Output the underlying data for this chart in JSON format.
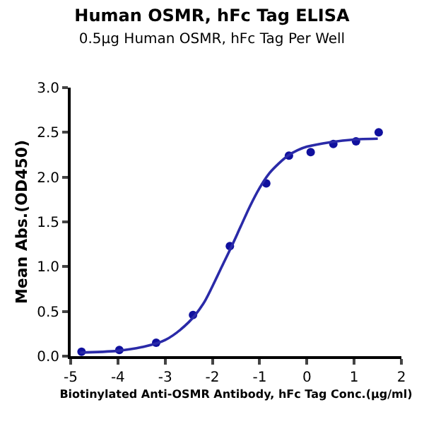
{
  "chart_data": {
    "type": "scatter",
    "title": "Human OSMR, hFc Tag ELISA",
    "subtitle": "0.5μg Human OSMR, hFc Tag Per Well",
    "xlabel": "Biotinylated Anti-OSMR Antibody, hFc Tag Conc.(μg/ml)",
    "ylabel": "Mean Abs.(OD450)",
    "series": [
      {
        "color": "#10109e",
        "marker": "circle",
        "x": [
          -4.77,
          -3.97,
          -3.19,
          -2.41,
          -1.63,
          -0.86,
          -0.38,
          0.08,
          0.56,
          1.04,
          1.52
        ],
        "values": [
          0.05,
          0.07,
          0.15,
          0.46,
          1.23,
          1.93,
          2.24,
          2.28,
          2.37,
          2.4,
          2.5
        ]
      },
      {
        "type": "line",
        "color": "#2a2aa8",
        "marker": "none",
        "x": [
          -4.8,
          -4.0,
          -3.5,
          -3.0,
          -2.5,
          -2.2,
          -2.0,
          -1.8,
          -1.6,
          -1.4,
          -1.2,
          -1.0,
          -0.8,
          -0.6,
          -0.4,
          -0.2,
          0,
          0.5,
          1.0,
          1.5
        ],
        "values": [
          0.04,
          0.06,
          0.1,
          0.18,
          0.38,
          0.58,
          0.78,
          1.0,
          1.22,
          1.45,
          1.68,
          1.88,
          2.04,
          2.15,
          2.24,
          2.3,
          2.34,
          2.39,
          2.42,
          2.43
        ]
      }
    ],
    "xlim": [
      -5,
      2
    ],
    "xticks": [
      -5,
      -4,
      -3,
      -2,
      -1,
      0,
      1,
      2
    ],
    "ylim": [
      0,
      3
    ],
    "yticks": [
      {
        "value": 0,
        "label": "0.0"
      },
      {
        "value": 0.5,
        "label": "0.5"
      },
      {
        "value": 1,
        "label": "1.0"
      },
      {
        "value": 1.5,
        "label": "1.5"
      },
      {
        "value": 2,
        "label": "2.0"
      },
      {
        "value": 2.5,
        "label": "2.5"
      },
      {
        "value": 3,
        "label": "3.0"
      }
    ],
    "legend": false
  }
}
